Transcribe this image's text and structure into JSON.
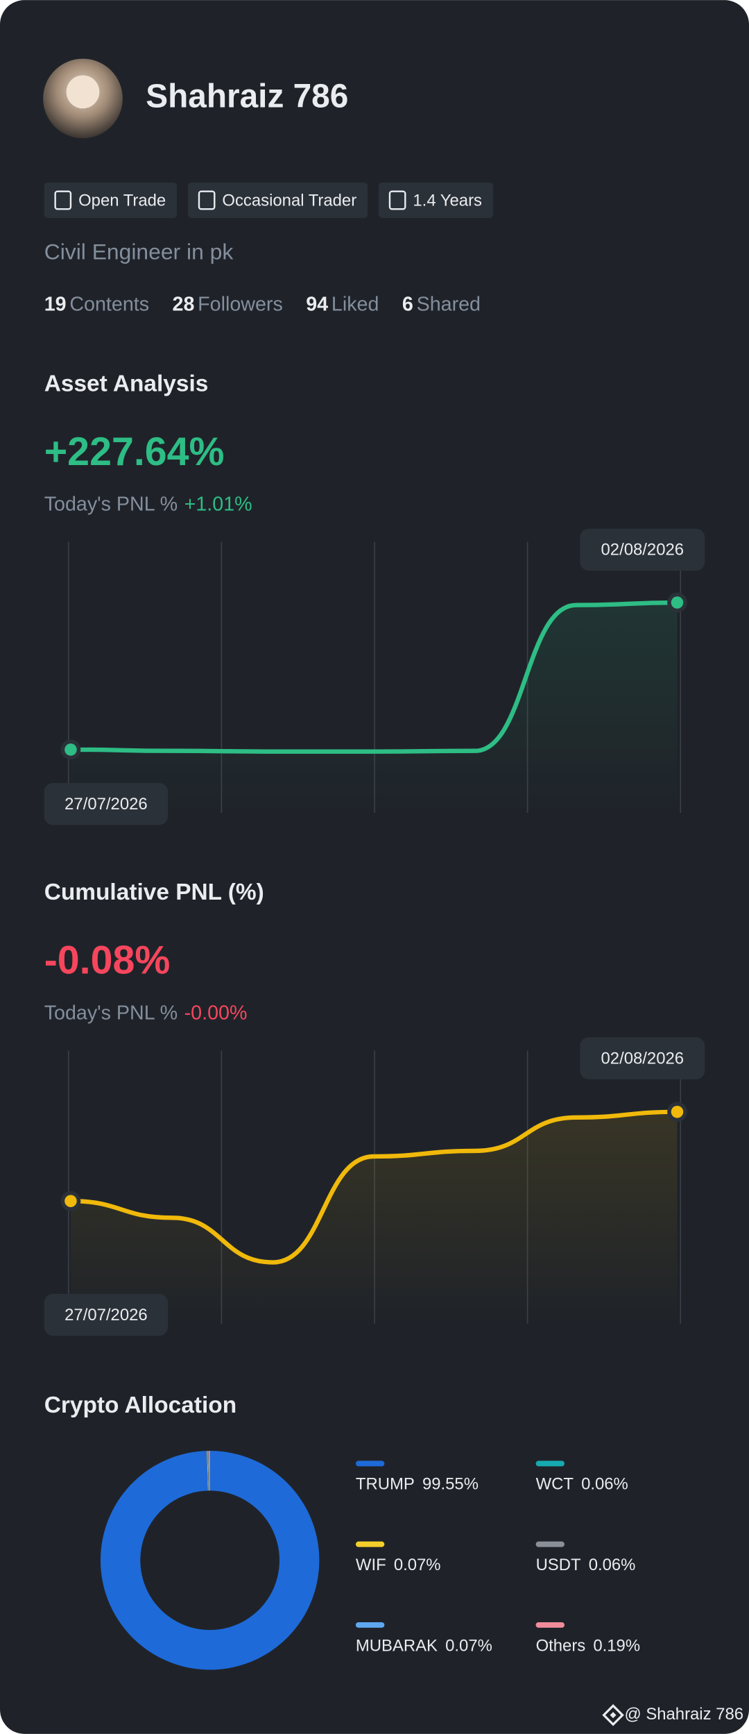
{
  "profile": {
    "name": "Shahraiz 786",
    "tags": [
      "Open Trade",
      "Occasional Trader",
      "1.4 Years"
    ],
    "bio": "Civil Engineer in pk",
    "stats": [
      {
        "value": 19,
        "label": "Contents"
      },
      {
        "value": 28,
        "label": "Followers"
      },
      {
        "value": 94,
        "label": "Liked"
      },
      {
        "value": 6,
        "label": "Shared"
      }
    ]
  },
  "chart_data": [
    {
      "type": "line",
      "title": "Asset Analysis",
      "headline": "+227.64%",
      "subtitle_label": "Today's PNL %",
      "subtitle_value": "+1.01%",
      "categories": [
        "27/07/2026",
        null,
        null,
        null,
        null,
        null,
        "02/08/2026"
      ],
      "values": [
        0,
        -2,
        -3,
        -3,
        -2,
        224,
        228
      ],
      "color": "#2ebd85",
      "ylim": [
        -98,
        322
      ]
    },
    {
      "type": "line",
      "title": "Cumulative PNL (%)",
      "headline": "-0.08%",
      "subtitle_label": "Today's PNL %",
      "subtitle_value": "-0.00%",
      "categories": [
        "27/07/2026",
        null,
        null,
        null,
        null,
        null,
        "02/08/2026"
      ],
      "values": [
        -0.24,
        -0.27,
        -0.35,
        -0.16,
        -0.15,
        -0.09,
        -0.08
      ],
      "color": "#f0b90b",
      "ylim": [
        -0.46,
        0.03
      ]
    },
    {
      "type": "pie",
      "title": "Crypto Allocation",
      "categories": [
        "TRUMP",
        "WIF",
        "MUBARAK",
        "WCT",
        "USDT",
        "Others"
      ],
      "values": [
        99.55,
        0.07,
        0.07,
        0.06,
        0.06,
        0.19
      ],
      "value_labels": [
        "99.55%",
        "0.07%",
        "0.07%",
        "0.06%",
        "0.06%",
        "0.19%"
      ],
      "colors": [
        "#1e6ad8",
        "#f5d02a",
        "#5fa8f0",
        "#16a9b0",
        "#8a8f98",
        "#f08c9a"
      ]
    }
  ],
  "footer": "@ Shahraiz 786"
}
